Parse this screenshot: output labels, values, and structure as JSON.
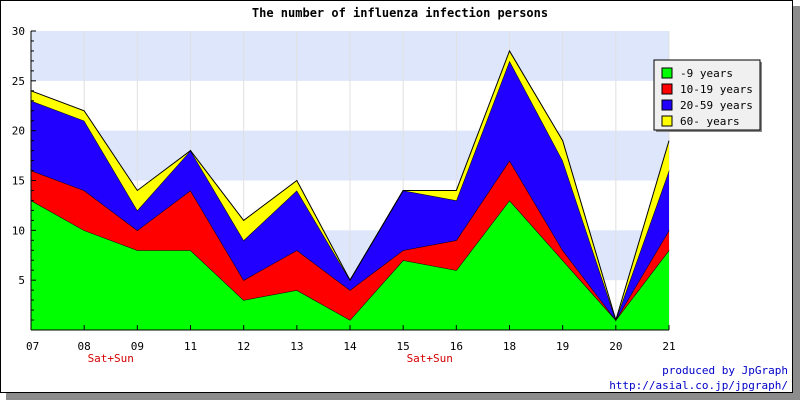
{
  "chart_data": {
    "type": "area",
    "stacked": true,
    "title": "The number of influenza infection persons",
    "xlabel": "",
    "ylabel": "",
    "categories": [
      "07",
      "08",
      "09",
      "11",
      "12",
      "13",
      "14",
      "15",
      "16",
      "18",
      "19",
      "20",
      "21"
    ],
    "ylim": [
      0,
      30
    ],
    "yticks": [
      5,
      10,
      15,
      20,
      25,
      30
    ],
    "grid": true,
    "legend_position": "top-right",
    "series": [
      {
        "name": "-9 years",
        "color": "#00ff00",
        "values": [
          13,
          10,
          8,
          8,
          3,
          4,
          1,
          7,
          6,
          13,
          7,
          1,
          8
        ]
      },
      {
        "name": "10-19 years",
        "color": "#ff0000",
        "values": [
          3,
          4,
          2,
          6,
          2,
          4,
          3,
          1,
          3,
          4,
          1,
          0,
          2
        ]
      },
      {
        "name": "20-59 years",
        "color": "#2200ff",
        "values": [
          7,
          7,
          2,
          4,
          4,
          6,
          1,
          6,
          4,
          10,
          9,
          0,
          6
        ]
      },
      {
        "name": "60- years",
        "color": "#ffff00",
        "values": [
          1,
          1,
          2,
          0,
          2,
          1,
          0,
          0,
          1,
          1,
          2,
          0,
          3
        ]
      }
    ],
    "annotations": [
      {
        "category": "08",
        "text": "Sat+Sun"
      },
      {
        "category": "15",
        "text": "Sat+Sun"
      }
    ]
  },
  "credit": {
    "line1": "produced by JpGraph",
    "line2": "http://asial.co.jp/jpgraph/"
  }
}
